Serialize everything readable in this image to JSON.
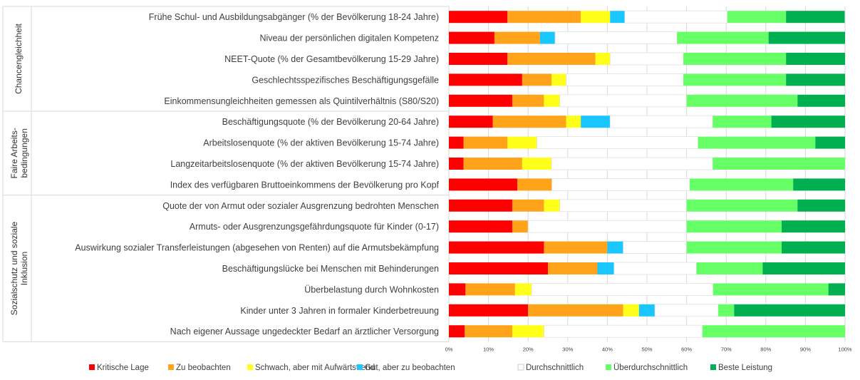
{
  "chart_data": {
    "type": "bar",
    "orientation": "horizontal",
    "stacked": true,
    "percent_stacked": true,
    "xlim": [
      0,
      100
    ],
    "x_tick_labels": [
      "0%",
      "10%",
      "20%",
      "30%",
      "40%",
      "50%",
      "60%",
      "70%",
      "80%",
      "90%",
      "100%"
    ],
    "grid": true,
    "legend_position": "bottom",
    "groups": [
      {
        "label": "Chancengleichheit",
        "count": 5
      },
      {
        "label": "Faire Arbeits-\nbedingungen",
        "count": 4
      },
      {
        "label": "Sozialschutz und soziale\nInklusion",
        "count": 7
      }
    ],
    "categories": [
      "Frühe Schul- und Ausbildungsabgänger (% der Bevölkerung 18-24 Jahre)",
      "Niveau der persönlichen digitalen Kompetenz",
      "NEET-Quote (% der Gesamtbevölkerung 15-29 Jahre)",
      "Geschlechtsspezifisches Beschäftigungsgefälle",
      "Einkommensungleichheiten gemessen als Quintilverhältnis (S80/S20)",
      "Beschäftigungsquote (% der Bevölkerung 20-64 Jahre)",
      "Arbeitslosenquote (% der aktiven Bevölkerung 15-74 Jahre)",
      "Langzeitarbeitslosenquote (% der aktiven Bevölkerung 15-74 Jahre)",
      "Index des verfügbaren Bruttoeinkommens der Bevölkerung pro Kopf",
      "Quote der von Armut oder sozialer Ausgrenzung bedrohten Menschen",
      "Armuts- oder Ausgrenzungsgefährdungsquote für Kinder (0-17)",
      "Auswirkung sozialer Transferleistungen (abgesehen von Renten) auf die Armutsbekämpfung",
      "Beschäftigungslücke bei Menschen mit Behinderungen",
      "Überbelastung durch Wohnkosten",
      "Kinder unter 3 Jahren in formaler Kinderbetreuung",
      "Nach eigener Aussage ungedeckter Bedarf an ärztlicher Versorgung"
    ],
    "series": [
      {
        "name": "Kritische Lage",
        "color": "#ff0000",
        "values": [
          14.8,
          11.5,
          14.8,
          18.5,
          16.0,
          11.1,
          3.7,
          3.7,
          17.3,
          16.0,
          16.0,
          24.0,
          25.0,
          4.2,
          20.0,
          4.0
        ]
      },
      {
        "name": "Zu beobachten",
        "color": "#ffa31a",
        "values": [
          18.5,
          11.5,
          22.2,
          7.4,
          8.0,
          18.5,
          11.1,
          14.8,
          8.7,
          8.0,
          4.0,
          16.0,
          12.5,
          12.5,
          24.0,
          12.0
        ]
      },
      {
        "name": "Schwach, aber mit Aufwärtstrend",
        "color": "#ffff1a",
        "values": [
          7.4,
          0,
          3.7,
          3.7,
          4.0,
          3.7,
          7.4,
          7.4,
          0,
          4.0,
          0,
          0,
          0,
          4.2,
          4.0,
          8.0
        ]
      },
      {
        "name": "Gut, aber zu beobachten",
        "color": "#1ac6ff",
        "values": [
          3.7,
          3.8,
          0,
          0,
          0,
          7.4,
          0,
          0,
          0,
          0,
          0,
          4.0,
          4.2,
          0,
          4.0,
          0
        ]
      },
      {
        "name": "Durchschnittlich",
        "color": "#ffffff",
        "values": [
          25.9,
          30.8,
          18.5,
          29.6,
          32.0,
          25.9,
          40.7,
          40.7,
          34.8,
          32.0,
          40.0,
          16.0,
          20.8,
          45.8,
          16.0,
          40.0
        ]
      },
      {
        "name": "Überdurchschnittlich",
        "color": "#66ff66",
        "values": [
          14.8,
          23.1,
          25.9,
          25.9,
          28.0,
          14.8,
          29.6,
          33.4,
          26.1,
          28.0,
          24.0,
          24.0,
          16.7,
          29.1,
          4.0,
          36.0
        ]
      },
      {
        "name": "Beste Leistung",
        "color": "#00b050",
        "values": [
          14.8,
          19.3,
          14.9,
          14.9,
          12.0,
          18.6,
          7.5,
          0,
          13.1,
          12.0,
          16.0,
          16.0,
          20.8,
          4.2,
          28.0,
          0
        ]
      }
    ]
  }
}
